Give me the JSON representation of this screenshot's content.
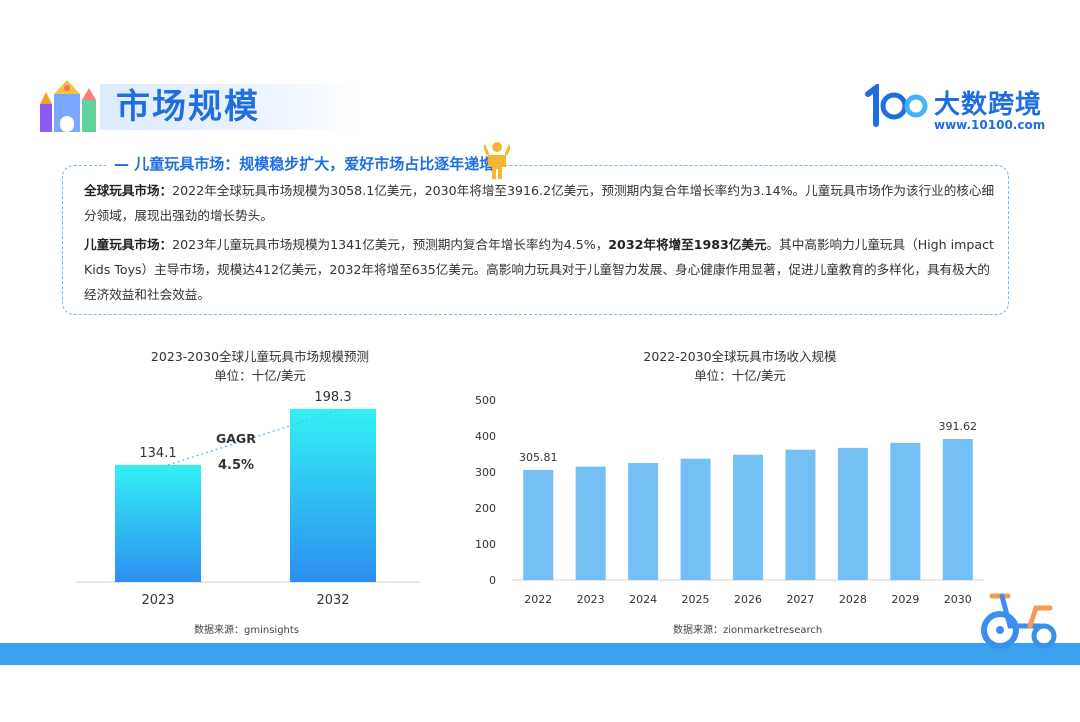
{
  "header": {
    "title": "市场规模",
    "logo_name": "大数跨境",
    "logo_url": "www.10100.com",
    "logo_mark_text": "100"
  },
  "section": {
    "heading": "儿童玩具市场：规模稳步扩大，爱好市场占比逐年递增",
    "p1_label": "全球玩具市场：",
    "p1_text": "2022年全球玩具市场规模为3058.1亿美元，2030年将增至3916.2亿美元，预测期内复合年增长率约为3.14%。儿童玩具市场作为该行业的核心细分领域，展现出强劲的增长势头。",
    "p2_label": "儿童玩具市场：",
    "p2_text_a": "2023年儿童玩具市场规模为1341亿美元，预测期内复合年增长率约为4.5%，",
    "p2_bold": "2032年将增至1983亿美元",
    "p2_text_b": "。其中高影响力儿童玩具（High impact Kids Toys）主导市场，规模达412亿美元，2032年将增至635亿美元。高影响力玩具对于儿童智力发展、身心健康作用显著，促进儿童教育的多样化，具有极大的经济效益和社会效益。"
  },
  "chart_data": [
    {
      "type": "bar",
      "title": "2023-2030全球儿童玩具市场规模预测",
      "subtitle": "单位：十亿/美元",
      "categories": [
        "2023",
        "2032"
      ],
      "values": [
        134.1,
        198.3
      ],
      "value_labels": [
        "134.1",
        "198.3"
      ],
      "ylim": [
        0,
        220
      ],
      "annotation": {
        "label": "GAGR",
        "value": "4.5%"
      },
      "source": "数据来源：gminsights",
      "colors": {
        "top": "#33f0f5",
        "bottom": "#2c8ff0"
      }
    },
    {
      "type": "bar",
      "title": "2022-2030全球玩具市场收入规模",
      "subtitle": "单位：十亿/美元",
      "categories": [
        "2022",
        "2023",
        "2024",
        "2025",
        "2026",
        "2027",
        "2028",
        "2029",
        "2030"
      ],
      "values": [
        305.81,
        315,
        325,
        337,
        348,
        362,
        367,
        381,
        391.62
      ],
      "value_labels": {
        "0": "305.81",
        "8": "391.62"
      },
      "yticks": [
        "0",
        "100",
        "200",
        "300",
        "400",
        "500"
      ],
      "ylim": [
        0,
        500
      ],
      "source": "数据来源：zionmarketresearch",
      "colors": {
        "bar": "#74c0f5"
      }
    }
  ]
}
